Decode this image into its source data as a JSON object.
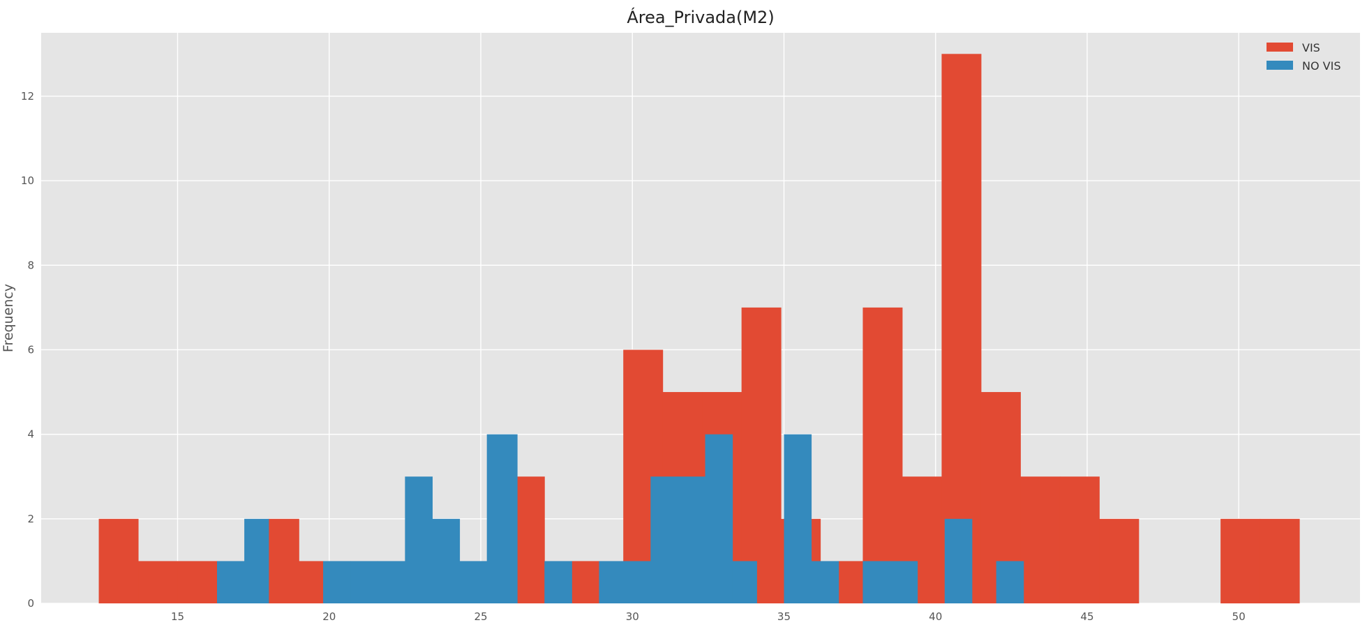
{
  "chart_data": {
    "type": "bar",
    "title": "Área_Privada(M2)",
    "xlabel": "",
    "ylabel": "Frequency",
    "xlim": [
      10.5,
      54.0
    ],
    "ylim": [
      0,
      13.5
    ],
    "xticks": [
      15,
      20,
      25,
      30,
      35,
      40,
      45,
      50
    ],
    "yticks": [
      0,
      2,
      4,
      6,
      8,
      10,
      12
    ],
    "grid": true,
    "legend_position": "top-right",
    "series": [
      {
        "name": "VIS",
        "color": "#E24A33",
        "bins": [
          [
            12.4,
            13.7,
            2
          ],
          [
            13.7,
            15.0,
            1
          ],
          [
            15.0,
            16.3,
            1
          ],
          [
            18.0,
            19.0,
            2
          ],
          [
            19.0,
            19.8,
            1
          ],
          [
            26.2,
            27.1,
            3
          ],
          [
            28.0,
            28.9,
            1
          ],
          [
            29.7,
            31.0,
            6
          ],
          [
            31.0,
            32.3,
            5
          ],
          [
            32.3,
            33.6,
            5
          ],
          [
            33.6,
            34.9,
            7
          ],
          [
            34.9,
            36.2,
            2
          ],
          [
            36.8,
            37.6,
            1
          ],
          [
            37.6,
            38.9,
            7
          ],
          [
            38.9,
            40.2,
            3
          ],
          [
            40.2,
            41.5,
            13
          ],
          [
            41.5,
            42.8,
            5
          ],
          [
            42.8,
            44.1,
            3
          ],
          [
            44.1,
            45.4,
            3
          ],
          [
            45.4,
            46.7,
            2
          ],
          [
            49.4,
            50.7,
            2
          ],
          [
            50.7,
            52.0,
            2
          ]
        ]
      },
      {
        "name": "NO VIS",
        "color": "#348ABD",
        "bins": [
          [
            16.3,
            17.2,
            1
          ],
          [
            17.2,
            18.0,
            2
          ],
          [
            19.8,
            20.7,
            1
          ],
          [
            20.7,
            21.6,
            1
          ],
          [
            21.6,
            22.5,
            1
          ],
          [
            22.5,
            23.4,
            3
          ],
          [
            23.4,
            24.3,
            2
          ],
          [
            24.3,
            25.2,
            1
          ],
          [
            25.2,
            26.2,
            4
          ],
          [
            27.1,
            28.0,
            1
          ],
          [
            28.9,
            29.8,
            1
          ],
          [
            29.8,
            30.6,
            1
          ],
          [
            30.6,
            31.5,
            3
          ],
          [
            31.5,
            32.4,
            3
          ],
          [
            32.4,
            33.3,
            4
          ],
          [
            33.3,
            34.1,
            1
          ],
          [
            35.0,
            35.9,
            4
          ],
          [
            35.9,
            36.8,
            1
          ],
          [
            37.6,
            38.5,
            1
          ],
          [
            38.5,
            39.4,
            1
          ],
          [
            40.3,
            41.2,
            2
          ],
          [
            42.0,
            42.9,
            1
          ]
        ]
      }
    ]
  }
}
